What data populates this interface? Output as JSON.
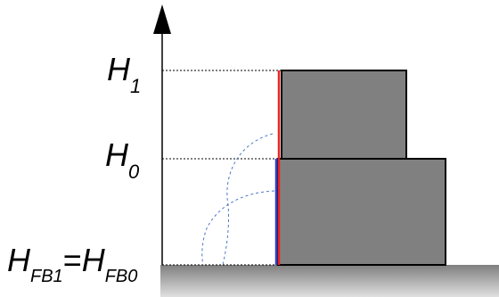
{
  "labels": {
    "h1": {
      "main": "H",
      "sub": "1"
    },
    "h0": {
      "main": "H",
      "sub": "0"
    },
    "hfb": {
      "left_main": "H",
      "left_sub": "FB1",
      "equals": "=",
      "right_main": "H",
      "right_sub": "FB0"
    }
  },
  "colors": {
    "block": "#808080",
    "outline": "#000000",
    "red_line": "#e8231f",
    "blue_line": "#2a3fd9",
    "dashed": "#4f78c4",
    "ground_top": "#8a8a8a",
    "ground_bottom": "#d8d8d8"
  }
}
